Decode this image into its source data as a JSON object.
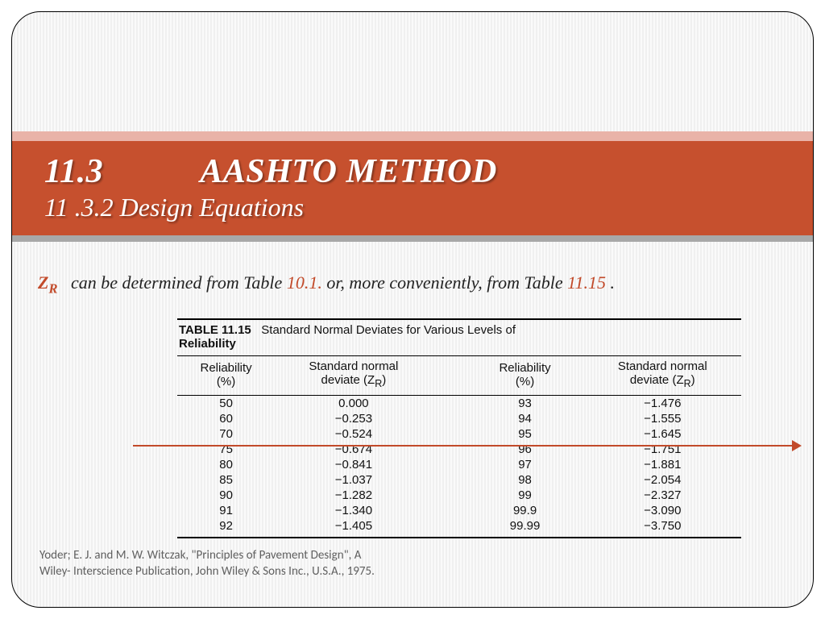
{
  "title": {
    "section_number": "11.3",
    "section_name": "AASHTO METHOD",
    "subsection": "11 .3.2 Design Equations"
  },
  "intro": {
    "symbol_base": "Z",
    "symbol_sub": "R",
    "text_a": "can be determined from Table ",
    "ref1": "10.1.",
    "text_b": " or, more conveniently, from Table ",
    "ref2": "11.15",
    "text_c": " ."
  },
  "table": {
    "label": "TABLE 11.15",
    "caption_a": "Standard Normal Deviates for Various Levels of",
    "caption_b": "Reliability",
    "columns": {
      "c1a": "Reliability",
      "c1b": "(%)",
      "c2a": "Standard normal",
      "c2b": "deviate (Z",
      "c2c": ")",
      "c3a": "Reliability",
      "c3b": "(%)",
      "c4a": "Standard normal",
      "c4b": "deviate (Z",
      "c4c": ")"
    },
    "rows": [
      {
        "r1": "50",
        "z1": "0.000",
        "r2": "93",
        "z2": "−1.476"
      },
      {
        "r1": "60",
        "z1": "−0.253",
        "r2": "94",
        "z2": "−1.555"
      },
      {
        "r1": "70",
        "z1": "−0.524",
        "r2": "95",
        "z2": "−1.645"
      },
      {
        "r1": "75",
        "z1": "−0.674",
        "r2": "96",
        "z2": "−1.751"
      },
      {
        "r1": "80",
        "z1": "−0.841",
        "r2": "97",
        "z2": "−1.881"
      },
      {
        "r1": "85",
        "z1": "−1.037",
        "r2": "98",
        "z2": "−2.054"
      },
      {
        "r1": "90",
        "z1": "−1.282",
        "r2": "99",
        "z2": "−2.327"
      },
      {
        "r1": "91",
        "z1": "−1.340",
        "r2": "99.9",
        "z2": "−3.090"
      },
      {
        "r1": "92",
        "z1": "−1.405",
        "r2": "99.99",
        "z2": "−3.750"
      }
    ]
  },
  "citation": {
    "line1": "Yoder; E. J. and M. W. Witczak, \"Principles of Pavement Design\", A",
    "line2": "Wiley- Interscience Publication, John Wiley & Sons Inc., U.S.A., 1975."
  },
  "colors": {
    "accent": "#c24a2a",
    "band": "#c6502e",
    "band_top": "#e9b3a8",
    "band_bottom": "#a8a8a8"
  }
}
